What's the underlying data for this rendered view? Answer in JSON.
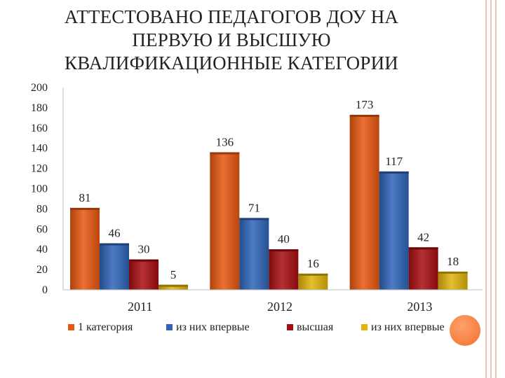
{
  "slide": {
    "title_lines": [
      "АТТЕСТОВАНО ПЕДАГОГОВ ДОУ НА",
      "ПЕРВУЮ И ВЫСШУЮ",
      "КВАЛИФИКАЦИОННЫЕ КАТЕГОРИИ"
    ],
    "accent_color": "#f2702f"
  },
  "chart_data": {
    "type": "bar",
    "categories": [
      "2011",
      "2012",
      "2013"
    ],
    "series": [
      {
        "name": "1 категория",
        "values": [
          81,
          136,
          173
        ],
        "color": "#e8570f"
      },
      {
        "name": "из них впервые",
        "values": [
          46,
          71,
          117
        ],
        "color": "#2e64b8"
      },
      {
        "name": "высшая",
        "values": [
          30,
          40,
          42
        ],
        "color": "#a80d10"
      },
      {
        "name": "из них впервые",
        "values": [
          5,
          16,
          18
        ],
        "color": "#e0b40a"
      }
    ],
    "ylim": [
      0,
      200
    ],
    "yticks": [
      0,
      20,
      40,
      60,
      80,
      100,
      120,
      140,
      160,
      180,
      200
    ],
    "grid": false,
    "legend": "bottom",
    "data_labels": true
  }
}
